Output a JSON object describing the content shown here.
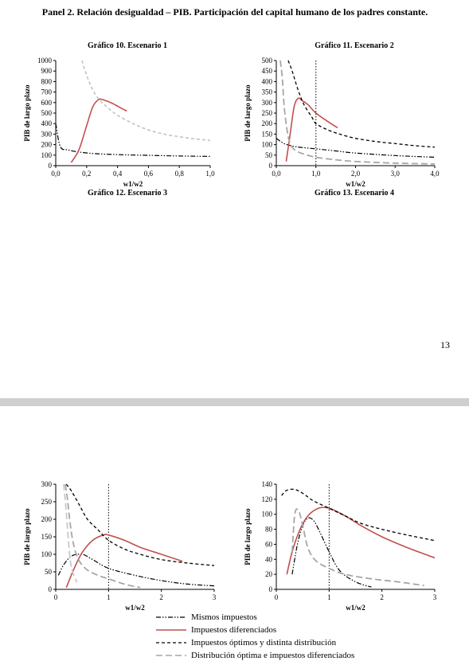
{
  "panel_title": "Panel 2. Relación desigualdad – PIB. Participación del capital humano de los padres constante.",
  "page_number": "13",
  "colors": {
    "mismos": "#000000",
    "diferenciados": "#c0504d",
    "optimos": "#000000",
    "distribucion": "#a6a6a6",
    "distribucion_light": "#c8c8c8"
  },
  "legend": [
    {
      "key": "mismos",
      "label": "Mismos impuestos"
    },
    {
      "key": "diferenciados",
      "label": "Impuestos diferenciados"
    },
    {
      "key": "optimos",
      "label": "Impuestos óptimos y distinta distribución"
    },
    {
      "key": "distribucion",
      "label": "Distribución óptima e impuestos diferenciados"
    }
  ],
  "chart_data": [
    {
      "id": "g10",
      "type": "line",
      "title": "Gráfico 10. Escenario 1",
      "xlabel": "w1/w2",
      "ylabel": "PIB de largo plazo",
      "xlim": [
        0,
        1
      ],
      "ylim": [
        0,
        1000
      ],
      "xticks": [
        0,
        0.2,
        0.4,
        0.6,
        0.8,
        1.0
      ],
      "xtick_labels": [
        "0,0",
        "0,2",
        "0,4",
        "0,6",
        "0,8",
        "1,0"
      ],
      "yticks": [
        0,
        100,
        200,
        300,
        400,
        500,
        600,
        700,
        800,
        900,
        1000
      ],
      "ytick_labels": [
        "0",
        "100",
        "200",
        "300",
        "400",
        "500",
        "600",
        "700",
        "800",
        "900",
        "1000"
      ],
      "vline": null,
      "series": [
        {
          "key": "mismos",
          "x": [
            0.0,
            0.03,
            0.08,
            0.15,
            0.25,
            0.4,
            0.6,
            0.8,
            1.0
          ],
          "y": [
            400,
            180,
            150,
            130,
            115,
            105,
            98,
            92,
            88
          ]
        },
        {
          "key": "diferenciados",
          "x": [
            0.1,
            0.15,
            0.2,
            0.24,
            0.28,
            0.32,
            0.37,
            0.42,
            0.46
          ],
          "y": [
            30,
            150,
            380,
            560,
            630,
            620,
            590,
            550,
            520
          ]
        },
        {
          "key": "optimos_light",
          "x": [
            0.17,
            0.2,
            0.24,
            0.28,
            0.33,
            0.4,
            0.5,
            0.6,
            0.7,
            0.8,
            0.9,
            1.0
          ],
          "y": [
            1000,
            860,
            720,
            630,
            560,
            480,
            400,
            340,
            300,
            275,
            255,
            240
          ]
        }
      ]
    },
    {
      "id": "g11",
      "type": "line",
      "title": "Gráfico 11. Escenario 2",
      "xlabel": "w1/w2",
      "ylabel": "PIB de largo plazo",
      "xlim": [
        0,
        4
      ],
      "ylim": [
        0,
        500
      ],
      "xticks": [
        0,
        1,
        2,
        3,
        4
      ],
      "xtick_labels": [
        "0,0",
        "1,0",
        "2,0",
        "3,0",
        "4,0"
      ],
      "yticks": [
        0,
        50,
        100,
        150,
        200,
        250,
        300,
        350,
        400,
        450,
        500
      ],
      "ytick_labels": [
        "0",
        "50",
        "100",
        "150",
        "200",
        "250",
        "300",
        "350",
        "400",
        "450",
        "500"
      ],
      "vline": 1.0,
      "series": [
        {
          "key": "mismos",
          "x": [
            0.0,
            0.2,
            0.5,
            1.0,
            1.5,
            2.0,
            3.0,
            4.0
          ],
          "y": [
            130,
            105,
            90,
            80,
            70,
            60,
            48,
            40
          ]
        },
        {
          "key": "diferenciados",
          "x": [
            0.25,
            0.35,
            0.45,
            0.55,
            0.65,
            0.8,
            1.0,
            1.3,
            1.55
          ],
          "y": [
            20,
            150,
            280,
            320,
            310,
            290,
            250,
            210,
            180
          ]
        },
        {
          "key": "optimos",
          "x": [
            0.3,
            0.4,
            0.55,
            0.7,
            0.9,
            1.0,
            1.3,
            1.6,
            2.0,
            2.5,
            3.0,
            3.5,
            4.0
          ],
          "y": [
            500,
            450,
            360,
            290,
            230,
            200,
            170,
            150,
            130,
            115,
            105,
            95,
            88
          ]
        },
        {
          "key": "distribucion",
          "x": [
            0.1,
            0.15,
            0.2,
            0.28,
            0.36,
            0.5,
            0.7,
            1.0,
            1.5,
            2.0,
            3.0,
            4.0
          ],
          "y": [
            500,
            420,
            280,
            160,
            100,
            70,
            55,
            40,
            28,
            20,
            12,
            8
          ]
        }
      ]
    },
    {
      "id": "g12",
      "type": "line",
      "title": "Gráfico 12. Escenario 3",
      "xlabel": "w1/w2",
      "ylabel": "PIB de largo plazo",
      "xlim": [
        0,
        3
      ],
      "ylim": [
        0,
        300
      ],
      "xticks": [
        0,
        1,
        2,
        3
      ],
      "xtick_labels": [
        "0",
        "1",
        "2",
        "3"
      ],
      "yticks": [
        0,
        50,
        100,
        150,
        200,
        250,
        300
      ],
      "ytick_labels": [
        "0",
        "50",
        "100",
        "150",
        "200",
        "250",
        "300"
      ],
      "vline": 1.0,
      "series": [
        {
          "key": "mismos",
          "x": [
            0.05,
            0.15,
            0.3,
            0.5,
            0.7,
            1.0,
            1.5,
            2.0,
            2.5,
            3.0
          ],
          "y": [
            40,
            70,
            95,
            100,
            85,
            60,
            40,
            25,
            15,
            10
          ]
        },
        {
          "key": "diferenciados",
          "x": [
            0.2,
            0.35,
            0.5,
            0.7,
            0.9,
            1.0,
            1.3,
            1.6,
            2.0,
            2.4
          ],
          "y": [
            5,
            60,
            105,
            140,
            155,
            155,
            140,
            120,
            100,
            80
          ]
        },
        {
          "key": "optimos",
          "x": [
            0.2,
            0.3,
            0.45,
            0.6,
            0.8,
            1.0,
            1.3,
            1.6,
            2.0,
            2.5,
            3.0
          ],
          "y": [
            300,
            280,
            240,
            200,
            170,
            140,
            115,
            100,
            85,
            75,
            68
          ]
        },
        {
          "key": "distribucion",
          "x": [
            0.18,
            0.22,
            0.28,
            0.35,
            0.45,
            0.6,
            0.8,
            1.0,
            1.3,
            1.6
          ],
          "y": [
            300,
            260,
            180,
            120,
            80,
            55,
            40,
            30,
            15,
            5
          ]
        },
        {
          "key": "distribucion_light",
          "x": [
            0.15,
            0.2,
            0.25,
            0.3,
            0.4
          ],
          "y": [
            300,
            220,
            120,
            60,
            20
          ]
        }
      ]
    },
    {
      "id": "g13",
      "type": "line",
      "title": "Gráfico 13. Escenario 4",
      "xlabel": "w1/w2",
      "ylabel": "PIB de largo plazo",
      "xlim": [
        0,
        3
      ],
      "ylim": [
        0,
        140
      ],
      "xticks": [
        0,
        1,
        2,
        3
      ],
      "xtick_labels": [
        "0",
        "1",
        "2",
        "3"
      ],
      "yticks": [
        0,
        20,
        40,
        60,
        80,
        100,
        120,
        140
      ],
      "ytick_labels": [
        "0",
        "20",
        "40",
        "60",
        "80",
        "100",
        "120",
        "140"
      ],
      "vline": 1.0,
      "series": [
        {
          "key": "mismos",
          "x": [
            0.3,
            0.4,
            0.5,
            0.6,
            0.7,
            0.8,
            1.0,
            1.2,
            1.5,
            1.8
          ],
          "y": [
            20,
            60,
            85,
            95,
            92,
            80,
            50,
            25,
            10,
            3
          ]
        },
        {
          "key": "diferenciados",
          "x": [
            0.2,
            0.3,
            0.45,
            0.6,
            0.8,
            1.0,
            1.3,
            1.6,
            2.0,
            2.5,
            3.0
          ],
          "y": [
            20,
            50,
            80,
            98,
            108,
            108,
            98,
            85,
            70,
            55,
            42
          ]
        },
        {
          "key": "optimos",
          "x": [
            0.1,
            0.2,
            0.35,
            0.5,
            0.7,
            1.0,
            1.3,
            1.6,
            2.0,
            2.5,
            3.0
          ],
          "y": [
            125,
            132,
            133,
            128,
            118,
            108,
            98,
            88,
            80,
            72,
            65
          ]
        },
        {
          "key": "distribucion",
          "x": [
            0.3,
            0.35,
            0.42,
            0.5,
            0.6,
            0.75,
            1.0,
            1.3,
            1.8,
            2.3,
            2.8
          ],
          "y": [
            50,
            100,
            105,
            85,
            55,
            38,
            28,
            20,
            14,
            10,
            5
          ]
        }
      ]
    }
  ]
}
